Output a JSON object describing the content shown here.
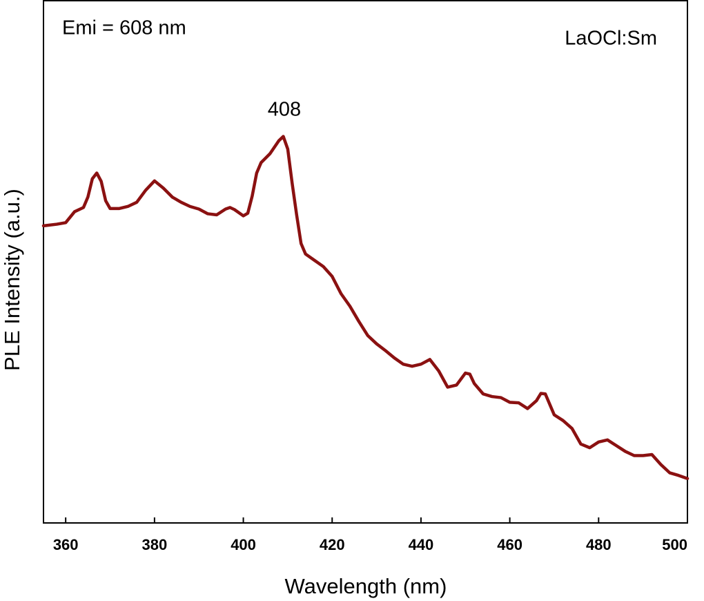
{
  "chart_data": {
    "type": "line",
    "xlabel": "Wavelength (nm)",
    "ylabel": "PLE Intensity (a.u.)",
    "annotations": [
      "Emi = 608 nm",
      "LaOCl:Sm",
      "408"
    ],
    "color": "#8b1111",
    "xlim": [
      355,
      500
    ],
    "ylim": [
      0,
      100
    ],
    "xticks": [
      360,
      380,
      400,
      420,
      440,
      460,
      480,
      500
    ],
    "x": [
      355,
      358,
      360,
      362,
      364,
      365,
      366,
      367,
      368,
      369,
      370,
      372,
      374,
      376,
      378,
      380,
      382,
      384,
      386,
      388,
      390,
      392,
      394,
      396,
      397,
      398,
      400,
      401,
      402,
      403,
      404,
      406,
      408,
      409,
      410,
      411,
      412,
      413,
      414,
      416,
      418,
      420,
      422,
      424,
      426,
      428,
      430,
      432,
      434,
      436,
      438,
      440,
      442,
      444,
      446,
      448,
      450,
      451,
      452,
      454,
      456,
      458,
      460,
      462,
      464,
      466,
      467,
      468,
      470,
      472,
      474,
      476,
      478,
      480,
      482,
      484,
      486,
      488,
      490,
      492,
      494,
      496,
      498,
      500
    ],
    "values": [
      56.9,
      57.2,
      57.5,
      59.6,
      60.4,
      62.4,
      65.9,
      67.0,
      65.4,
      61.7,
      60.2,
      60.2,
      60.6,
      61.4,
      63.7,
      65.5,
      64.1,
      62.4,
      61.4,
      60.6,
      60.1,
      59.2,
      59.0,
      60.1,
      60.4,
      60.0,
      58.8,
      59.3,
      62.6,
      67.0,
      69.0,
      70.7,
      73.2,
      74.0,
      71.6,
      65.0,
      59.0,
      53.5,
      51.5,
      50.3,
      49.1,
      47.2,
      43.9,
      41.5,
      38.6,
      35.9,
      34.3,
      33.0,
      31.6,
      30.4,
      30.0,
      30.4,
      31.3,
      29.1,
      26.0,
      26.4,
      28.7,
      28.5,
      26.7,
      24.7,
      24.2,
      24.0,
      23.1,
      23.0,
      21.9,
      23.4,
      24.8,
      24.7,
      20.7,
      19.6,
      18.1,
      15.1,
      14.4,
      15.5,
      15.9,
      14.8,
      13.7,
      12.9,
      12.9,
      13.1,
      11.2,
      9.6,
      9.1,
      8.5
    ]
  }
}
